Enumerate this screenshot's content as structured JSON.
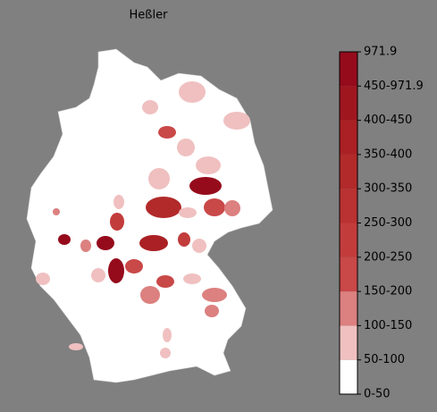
{
  "title": "Heßler",
  "colorbar": {
    "labels": [
      "0-50",
      "50-100",
      "100-150",
      "150-200",
      "200-250",
      "250-300",
      "300-350",
      "350-400",
      "400-450",
      "450-971.9",
      "971.9"
    ],
    "colors": [
      "#ffffff",
      "#f0c0c0",
      "#dc8080",
      "#c94848",
      "#c23c3c",
      "#ba3232",
      "#b22a2a",
      "#aa2024",
      "#a0161f",
      "#950b1c"
    ]
  }
}
